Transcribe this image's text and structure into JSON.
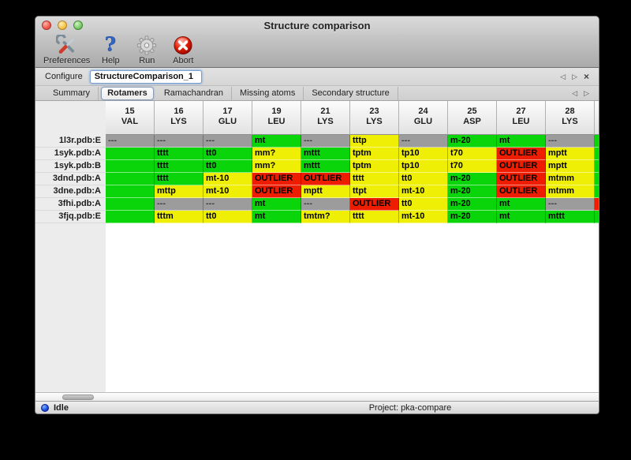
{
  "window_title": "Structure comparison",
  "toolbar": {
    "items": [
      {
        "label": "Preferences",
        "icon": "preferences-tools-icon"
      },
      {
        "label": "Help",
        "icon": "help-question-icon"
      },
      {
        "label": "Run",
        "icon": "run-gear-icon"
      },
      {
        "label": "Abort",
        "icon": "abort-icon"
      }
    ]
  },
  "configure": {
    "label": "Configure",
    "value": "StructureComparison_1"
  },
  "nav": {
    "prev": "◁",
    "next": "▷",
    "close": "×"
  },
  "tabs": [
    {
      "label": "Summary",
      "selected": false
    },
    {
      "label": "Rotamers",
      "selected": true
    },
    {
      "label": "Ramachandran",
      "selected": false
    },
    {
      "label": "Missing atoms",
      "selected": false
    },
    {
      "label": "Secondary structure",
      "selected": false
    }
  ],
  "table": {
    "legend_colors": {
      "g": "#0ad40a",
      "y": "#efef05",
      "r": "#ee1d00",
      "x": "#9c9c9c"
    },
    "columns": [
      {
        "num": "15",
        "res": "VAL"
      },
      {
        "num": "16",
        "res": "LYS"
      },
      {
        "num": "17",
        "res": "GLU"
      },
      {
        "num": "19",
        "res": "LEU"
      },
      {
        "num": "21",
        "res": "LYS"
      },
      {
        "num": "23",
        "res": "LYS"
      },
      {
        "num": "24",
        "res": "GLU"
      },
      {
        "num": "25",
        "res": "ASP"
      },
      {
        "num": "27",
        "res": "LEU"
      },
      {
        "num": "28",
        "res": "LYS"
      }
    ],
    "rows": [
      {
        "name": "1l3r.pdb:E",
        "cells": [
          [
            "---",
            "x"
          ],
          [
            "---",
            "x"
          ],
          [
            "---",
            "x"
          ],
          [
            "mt",
            "g"
          ],
          [
            "---",
            "x"
          ],
          [
            "tttp",
            "y"
          ],
          [
            "---",
            "x"
          ],
          [
            "m-20",
            "g"
          ],
          [
            "mt",
            "g"
          ],
          [
            "---",
            "x"
          ]
        ],
        "overflow": "g"
      },
      {
        "name": "1syk.pdb:A",
        "cells": [
          [
            "",
            "g"
          ],
          [
            "tttt",
            "g"
          ],
          [
            "tt0",
            "g"
          ],
          [
            "mm?",
            "y"
          ],
          [
            "mttt",
            "g"
          ],
          [
            "tptm",
            "y"
          ],
          [
            "tp10",
            "y"
          ],
          [
            "t70",
            "y"
          ],
          [
            "OUTLIER",
            "r"
          ],
          [
            "mptt",
            "y"
          ]
        ],
        "overflow": "g"
      },
      {
        "name": "1syk.pdb:B",
        "cells": [
          [
            "",
            "g"
          ],
          [
            "tttt",
            "g"
          ],
          [
            "tt0",
            "g"
          ],
          [
            "mm?",
            "y"
          ],
          [
            "mttt",
            "g"
          ],
          [
            "tptm",
            "y"
          ],
          [
            "tp10",
            "y"
          ],
          [
            "t70",
            "y"
          ],
          [
            "OUTLIER",
            "r"
          ],
          [
            "mptt",
            "y"
          ]
        ],
        "overflow": "g"
      },
      {
        "name": "3dnd.pdb:A",
        "cells": [
          [
            "",
            "g"
          ],
          [
            "tttt",
            "g"
          ],
          [
            "mt-10",
            "y"
          ],
          [
            "OUTLIER",
            "r"
          ],
          [
            "OUTLIER",
            "r"
          ],
          [
            "tttt",
            "y"
          ],
          [
            "tt0",
            "y"
          ],
          [
            "m-20",
            "g"
          ],
          [
            "OUTLIER",
            "r"
          ],
          [
            "mtmm",
            "y"
          ]
        ],
        "overflow": "g"
      },
      {
        "name": "3dne.pdb:A",
        "cells": [
          [
            "",
            "g"
          ],
          [
            "mttp",
            "y"
          ],
          [
            "mt-10",
            "y"
          ],
          [
            "OUTLIER",
            "r"
          ],
          [
            "mptt",
            "y"
          ],
          [
            "ttpt",
            "y"
          ],
          [
            "mt-10",
            "y"
          ],
          [
            "m-20",
            "g"
          ],
          [
            "OUTLIER",
            "r"
          ],
          [
            "mtmm",
            "y"
          ]
        ],
        "overflow": "g"
      },
      {
        "name": "3fhi.pdb:A",
        "cells": [
          [
            "",
            "g"
          ],
          [
            "---",
            "x"
          ],
          [
            "---",
            "x"
          ],
          [
            "mt",
            "g"
          ],
          [
            "---",
            "x"
          ],
          [
            "OUTLIER",
            "r"
          ],
          [
            "tt0",
            "y"
          ],
          [
            "m-20",
            "g"
          ],
          [
            "mt",
            "g"
          ],
          [
            "---",
            "x"
          ]
        ],
        "overflow": "r"
      },
      {
        "name": "3fjq.pdb:E",
        "cells": [
          [
            "",
            "g"
          ],
          [
            "tttm",
            "y"
          ],
          [
            "tt0",
            "y"
          ],
          [
            "mt",
            "g"
          ],
          [
            "tmtm?",
            "y"
          ],
          [
            "tttt",
            "y"
          ],
          [
            "mt-10",
            "y"
          ],
          [
            "m-20",
            "g"
          ],
          [
            "mt",
            "g"
          ],
          [
            "mttt",
            "g"
          ]
        ],
        "overflow": "g"
      }
    ]
  },
  "statusbar": {
    "left": "Idle",
    "right": "Project: pka-compare"
  }
}
